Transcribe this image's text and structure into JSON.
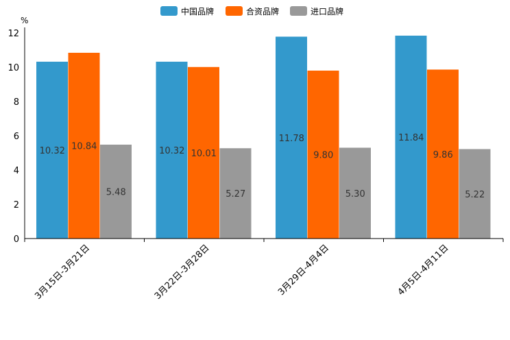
{
  "chart_data": {
    "type": "bar",
    "title": "",
    "unit": "%",
    "xlabel": "",
    "ylabel": "%",
    "ylim": [
      0,
      12
    ],
    "yticks": [
      0,
      2,
      4,
      6,
      8,
      10,
      12
    ],
    "grid": false,
    "legend_position": "top-center",
    "categories": [
      "3月15日-3月21日",
      "3月22日-3月28日",
      "3月29日-4月4日",
      "4月5日-4月11日"
    ],
    "series": [
      {
        "name": "中国品牌",
        "color": "#3399cc",
        "values": [
          10.32,
          10.32,
          11.78,
          11.84
        ],
        "labels": [
          "10.32",
          "10.32",
          "11.78",
          "11.84"
        ]
      },
      {
        "name": "合资品牌",
        "color": "#ff6600",
        "values": [
          10.84,
          10.01,
          9.8,
          9.86
        ],
        "labels": [
          "10.84",
          "10.01",
          "9.80",
          "9.86"
        ]
      },
      {
        "name": "进口品牌",
        "color": "#999999",
        "values": [
          5.48,
          5.27,
          5.3,
          5.22
        ],
        "labels": [
          "5.48",
          "5.27",
          "5.30",
          "5.22"
        ]
      }
    ]
  }
}
